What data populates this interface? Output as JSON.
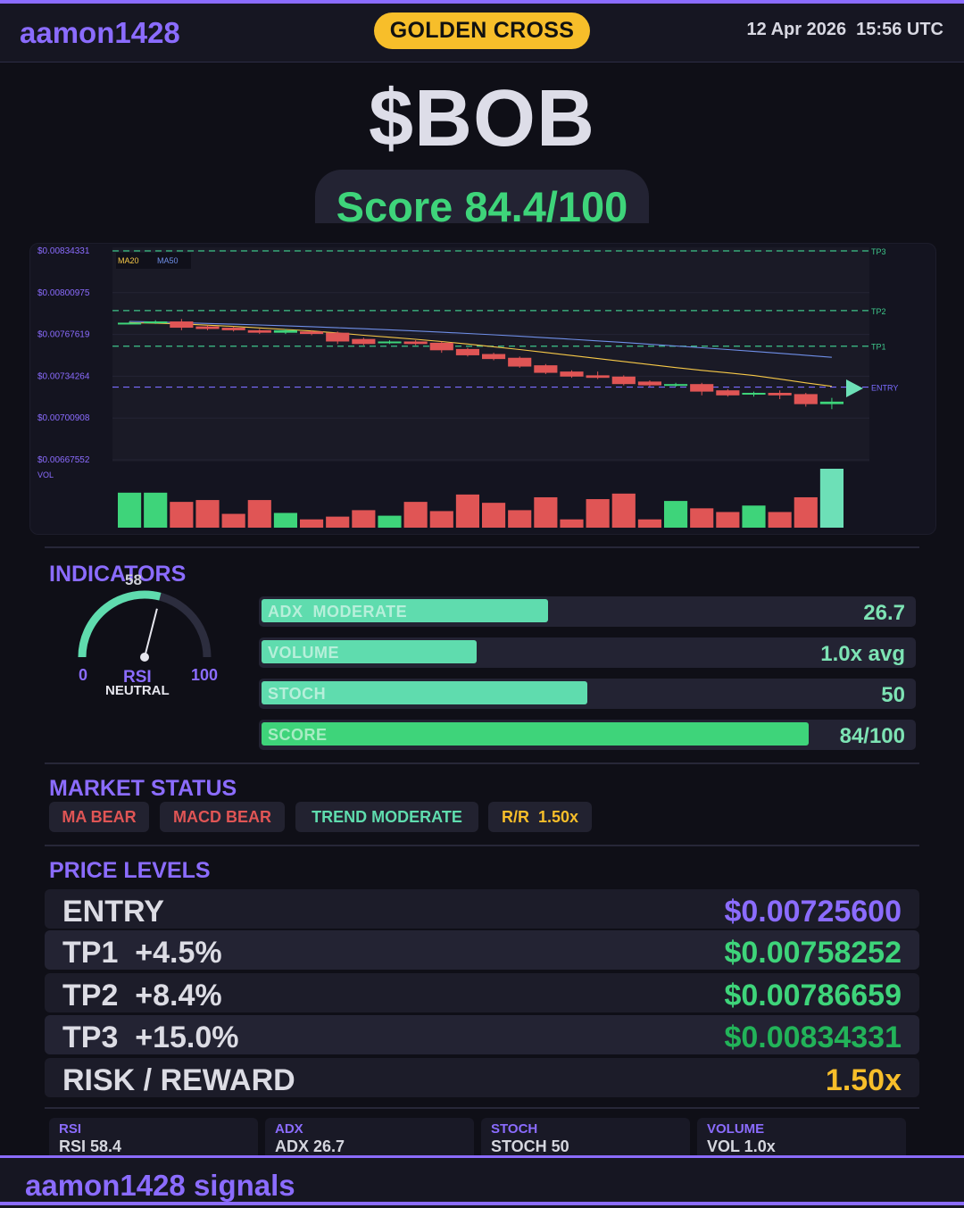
{
  "header": {
    "brand": "aamon1428",
    "signal_badge": "GOLDEN CROSS",
    "datetime": "12 Apr 2026  15:56 UTC"
  },
  "ticker": "$BOB",
  "score": "Score 84.4/100",
  "chart_data": {
    "type": "candlestick",
    "y_tick_labels": [
      "$0.00834331",
      "$0.00800975",
      "$0.00767619",
      "$0.00734264",
      "$0.00700908",
      "$0.00667552"
    ],
    "ylim": [
      0.00667552,
      0.00834331
    ],
    "volume_label": "VOL",
    "legend": [
      "MA20",
      "MA50"
    ],
    "colors": {
      "up": "#3ed47a",
      "down": "#e05555",
      "ma20": "#f7c948",
      "ma50": "#6f8fe8",
      "tp": "#3ec58a",
      "entry": "#7a6cff",
      "entry_arrow": "#6de0b7"
    },
    "levels": [
      {
        "name": "TP3",
        "value": 0.00834331
      },
      {
        "name": "TP2",
        "value": 0.00786659
      },
      {
        "name": "TP1",
        "value": 0.00758252
      },
      {
        "name": "ENTRY",
        "value": 0.007256
      }
    ],
    "candles": [
      [
        0.00777,
        0.00777,
        0.00778,
        0.00776
      ],
      [
        0.00777,
        0.00778,
        0.00779,
        0.00776
      ],
      [
        0.00778,
        0.00773,
        0.0078,
        0.00771
      ],
      [
        0.00774,
        0.00772,
        0.00775,
        0.00771
      ],
      [
        0.00773,
        0.00771,
        0.00774,
        0.0077
      ],
      [
        0.00771,
        0.00769,
        0.00772,
        0.00768
      ],
      [
        0.00769,
        0.00771,
        0.00772,
        0.00768
      ],
      [
        0.0077,
        0.00768,
        0.00771,
        0.00767
      ],
      [
        0.00769,
        0.00762,
        0.0077,
        0.0076
      ],
      [
        0.00764,
        0.0076,
        0.00765,
        0.00759
      ],
      [
        0.00761,
        0.00762,
        0.00763,
        0.0076
      ],
      [
        0.00762,
        0.0076,
        0.00763,
        0.00759
      ],
      [
        0.00761,
        0.00755,
        0.00762,
        0.00753
      ],
      [
        0.00756,
        0.00751,
        0.00757,
        0.0075
      ],
      [
        0.00752,
        0.00748,
        0.00753,
        0.00747
      ],
      [
        0.00749,
        0.00742,
        0.0075,
        0.00741
      ],
      [
        0.00743,
        0.00737,
        0.00744,
        0.00736
      ],
      [
        0.00738,
        0.00734,
        0.00739,
        0.00733
      ],
      [
        0.00735,
        0.00733,
        0.00738,
        0.00732
      ],
      [
        0.00734,
        0.00728,
        0.00735,
        0.00727
      ],
      [
        0.0073,
        0.00727,
        0.00731,
        0.00726
      ],
      [
        0.00727,
        0.00728,
        0.00729,
        0.00726
      ],
      [
        0.00728,
        0.00722,
        0.00729,
        0.00719
      ],
      [
        0.00723,
        0.00719,
        0.00724,
        0.00718
      ],
      [
        0.0072,
        0.00721,
        0.00722,
        0.00718
      ],
      [
        0.00721,
        0.00719,
        0.00723,
        0.00716
      ],
      [
        0.0072,
        0.00712,
        0.00721,
        0.0071
      ],
      [
        0.00712,
        0.00714,
        0.00717,
        0.00708
      ]
    ],
    "ma20": [
      0.00777,
      0.007766,
      0.00776,
      0.00775,
      0.00774,
      0.007728,
      0.007716,
      0.007704,
      0.007688,
      0.00767,
      0.007654,
      0.007638,
      0.00762,
      0.0076,
      0.007578,
      0.007556,
      0.007532,
      0.007508,
      0.007484,
      0.00746,
      0.007436,
      0.007412,
      0.00739,
      0.00737,
      0.007348,
      0.00732,
      0.00729,
      0.007262
    ],
    "ma50": [
      0.00778,
      0.007775,
      0.00777,
      0.007764,
      0.007758,
      0.007752,
      0.007745,
      0.007738,
      0.00773,
      0.007722,
      0.007713,
      0.007704,
      0.007694,
      0.007684,
      0.007673,
      0.007662,
      0.00765,
      0.007638,
      0.007625,
      0.007612,
      0.007598,
      0.007584,
      0.00757,
      0.007556,
      0.007541,
      0.007526,
      0.00751,
      0.007494
    ],
    "volumes": [
      38,
      38,
      28,
      30,
      15,
      30,
      16,
      9,
      12,
      19,
      13,
      28,
      18,
      36,
      27,
      19,
      33,
      9,
      31,
      37,
      9,
      29,
      21,
      17,
      24,
      17,
      33,
      64
    ],
    "volume_up": [
      true,
      true,
      false,
      false,
      false,
      false,
      true,
      false,
      false,
      false,
      true,
      false,
      false,
      false,
      false,
      false,
      false,
      false,
      false,
      false,
      false,
      true,
      false,
      false,
      true,
      false,
      false,
      true
    ]
  },
  "indicators": {
    "title": "INDICATORS",
    "rsi": {
      "value": 58,
      "label": "RSI",
      "state": "NEUTRAL",
      "min": "0",
      "max": "100"
    },
    "bars": [
      {
        "label": "ADX  MODERATE",
        "value": "26.7",
        "fill": 0.44,
        "color": "#5fdcae"
      },
      {
        "label": "VOLUME",
        "value": "1.0x avg",
        "fill": 0.33,
        "color": "#5fdcae"
      },
      {
        "label": "STOCH",
        "value": "50",
        "fill": 0.5,
        "color": "#5fdcae"
      },
      {
        "label": "SCORE",
        "value": "84/100",
        "fill": 0.84,
        "color": "#3ed47a"
      }
    ]
  },
  "market_status": {
    "title": "MARKET STATUS",
    "tags": [
      {
        "text": "MA BEAR",
        "color": "#e05555"
      },
      {
        "text": "MACD BEAR",
        "color": "#e05555"
      },
      {
        "text": "TREND MODERATE",
        "color": "#5fdcae"
      },
      {
        "text": "R/R  1.50x",
        "color": "#f7be2a"
      }
    ]
  },
  "price_levels": {
    "title": "PRICE LEVELS",
    "rows": [
      {
        "name": "ENTRY",
        "price": "$0.00725600",
        "color": "#8b6cff"
      },
      {
        "name": "TP1  +4.5%",
        "price": "$0.00758252",
        "color": "#3ed47a"
      },
      {
        "name": "TP2  +8.4%",
        "price": "$0.00786659",
        "color": "#3ed47a"
      },
      {
        "name": "TP3  +15.0%",
        "price": "$0.00834331",
        "color": "#22b359"
      },
      {
        "name": "RISK / REWARD",
        "price": "1.50x",
        "color": "#f7be2a"
      }
    ]
  },
  "stat_cards": [
    {
      "title": "RSI",
      "value": "RSI 58.4"
    },
    {
      "title": "ADX",
      "value": "ADX 26.7"
    },
    {
      "title": "STOCH",
      "value": "STOCH 50"
    },
    {
      "title": "VOLUME",
      "value": "VOL 1.0x"
    }
  ],
  "footer": "aamon1428 signals"
}
